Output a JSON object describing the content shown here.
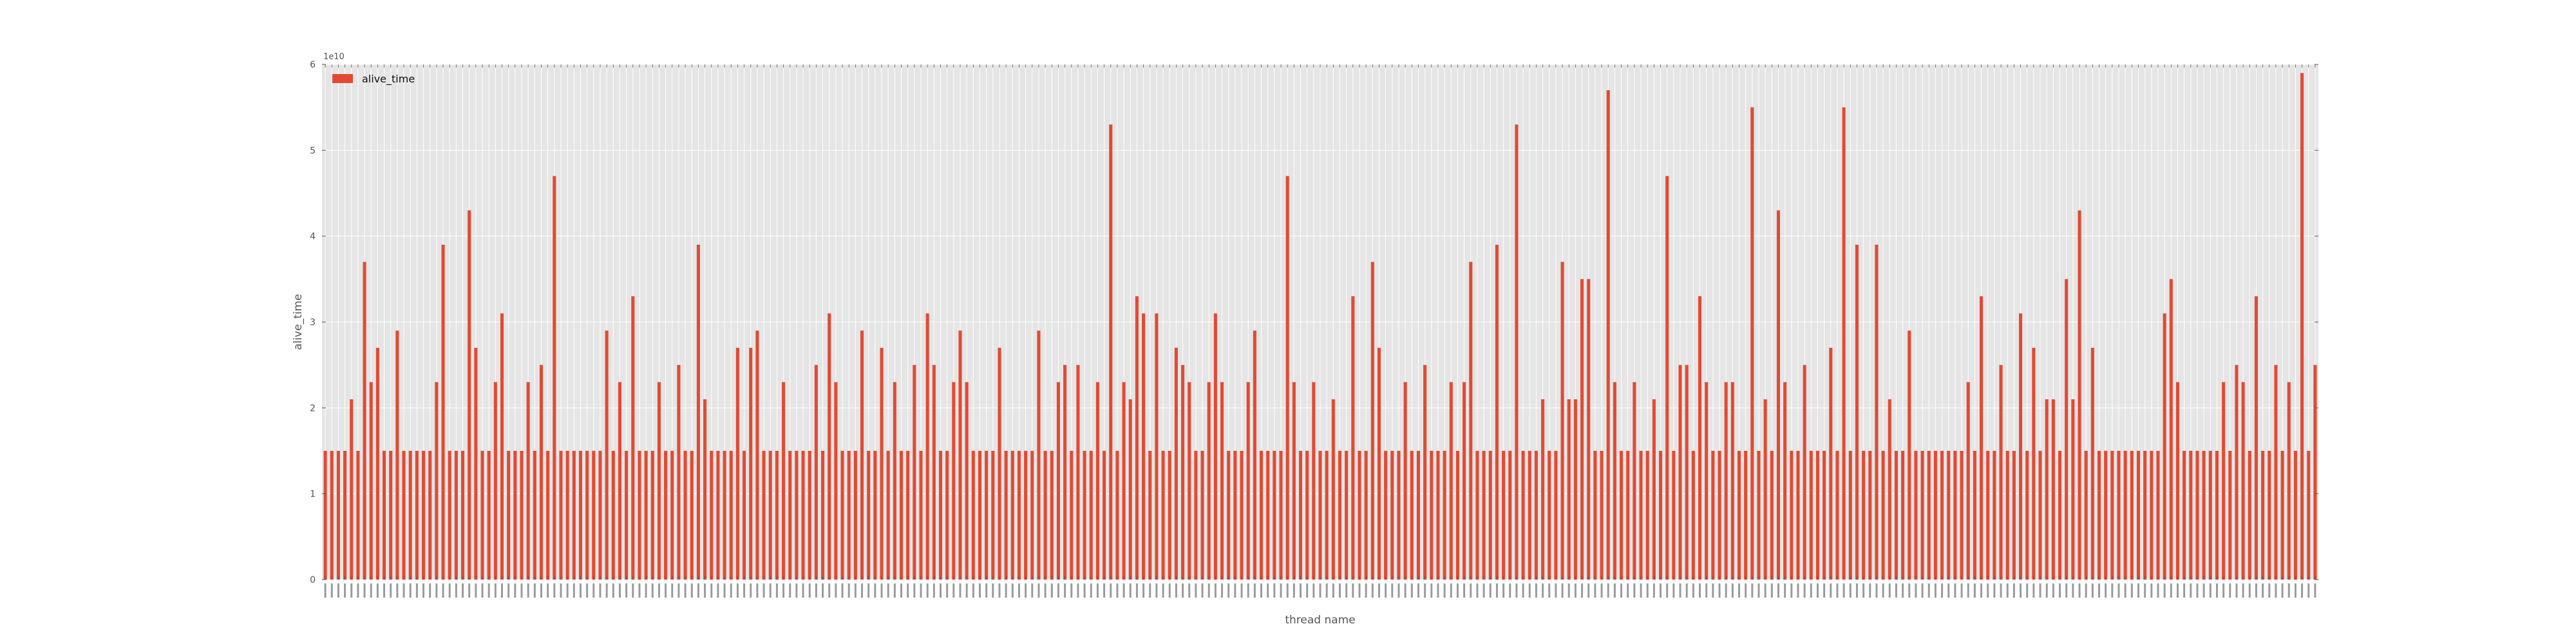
{
  "chart_data": {
    "type": "bar",
    "title": "",
    "xlabel": "thread name",
    "ylabel": "alive_time",
    "ylim": [
      0,
      60000000000
    ],
    "y_ticks": [
      0,
      10000000000,
      20000000000,
      30000000000,
      40000000000,
      50000000000,
      60000000000
    ],
    "y_tick_labels": [
      "0",
      "1",
      "2",
      "3",
      "4",
      "5",
      "6"
    ],
    "y_offset_label": "1e10",
    "grid": true,
    "legend_position": "top-left",
    "x_tick_labels_rotated": true,
    "x_tick_labels_legible": false,
    "bar_color": "#E24A33",
    "background_color": "#E5E5E5",
    "grid_color": "#FFFFFF",
    "series": [
      {
        "name": "alive_time",
        "values": [
          15000000000,
          15000000000,
          15000000000,
          15000000000,
          21000000000,
          15000000000,
          37000000000,
          23000000000,
          27000000000,
          15000000000,
          15000000000,
          29000000000,
          15000000000,
          15000000000,
          15000000000,
          15000000000,
          15000000000,
          23000000000,
          39000000000,
          15000000000,
          15000000000,
          15000000000,
          43000000000,
          27000000000,
          15000000000,
          15000000000,
          23000000000,
          31000000000,
          15000000000,
          15000000000,
          15000000000,
          23000000000,
          15000000000,
          25000000000,
          15000000000,
          47000000000,
          15000000000,
          15000000000,
          15000000000,
          15000000000,
          15000000000,
          15000000000,
          15000000000,
          29000000000,
          15000000000,
          23000000000,
          15000000000,
          33000000000,
          15000000000,
          15000000000,
          15000000000,
          23000000000,
          15000000000,
          15000000000,
          25000000000,
          15000000000,
          15000000000,
          39000000000,
          21000000000,
          15000000000,
          15000000000,
          15000000000,
          15000000000,
          27000000000,
          15000000000,
          27000000000,
          29000000000,
          15000000000,
          15000000000,
          15000000000,
          23000000000,
          15000000000,
          15000000000,
          15000000000,
          15000000000,
          25000000000,
          15000000000,
          31000000000,
          23000000000,
          15000000000,
          15000000000,
          15000000000,
          29000000000,
          15000000000,
          15000000000,
          27000000000,
          15000000000,
          23000000000,
          15000000000,
          15000000000,
          25000000000,
          15000000000,
          31000000000,
          25000000000,
          15000000000,
          15000000000,
          23000000000,
          29000000000,
          23000000000,
          15000000000,
          15000000000,
          15000000000,
          15000000000,
          27000000000,
          15000000000,
          15000000000,
          15000000000,
          15000000000,
          15000000000,
          29000000000,
          15000000000,
          15000000000,
          23000000000,
          25000000000,
          15000000000,
          25000000000,
          15000000000,
          15000000000,
          23000000000,
          15000000000,
          53000000000,
          15000000000,
          23000000000,
          21000000000,
          33000000000,
          31000000000,
          15000000000,
          31000000000,
          15000000000,
          15000000000,
          27000000000,
          25000000000,
          23000000000,
          15000000000,
          15000000000,
          23000000000,
          31000000000,
          23000000000,
          15000000000,
          15000000000,
          15000000000,
          23000000000,
          29000000000,
          15000000000,
          15000000000,
          15000000000,
          15000000000,
          47000000000,
          23000000000,
          15000000000,
          15000000000,
          23000000000,
          15000000000,
          15000000000,
          21000000000,
          15000000000,
          15000000000,
          33000000000,
          15000000000,
          15000000000,
          37000000000,
          27000000000,
          15000000000,
          15000000000,
          15000000000,
          23000000000,
          15000000000,
          15000000000,
          25000000000,
          15000000000,
          15000000000,
          15000000000,
          23000000000,
          15000000000,
          23000000000,
          37000000000,
          15000000000,
          15000000000,
          15000000000,
          39000000000,
          15000000000,
          15000000000,
          53000000000,
          15000000000,
          15000000000,
          15000000000,
          21000000000,
          15000000000,
          15000000000,
          37000000000,
          21000000000,
          21000000000,
          35000000000,
          35000000000,
          15000000000,
          15000000000,
          57000000000,
          23000000000,
          15000000000,
          15000000000,
          23000000000,
          15000000000,
          15000000000,
          21000000000,
          15000000000,
          47000000000,
          15000000000,
          25000000000,
          25000000000,
          15000000000,
          33000000000,
          23000000000,
          15000000000,
          15000000000,
          23000000000,
          23000000000,
          15000000000,
          15000000000,
          55000000000,
          15000000000,
          21000000000,
          15000000000,
          43000000000,
          23000000000,
          15000000000,
          15000000000,
          25000000000,
          15000000000,
          15000000000,
          15000000000,
          27000000000,
          15000000000,
          55000000000,
          15000000000,
          39000000000,
          15000000000,
          15000000000,
          39000000000,
          15000000000,
          21000000000,
          15000000000,
          15000000000,
          29000000000,
          15000000000,
          15000000000,
          15000000000,
          15000000000,
          15000000000,
          15000000000,
          15000000000,
          15000000000,
          23000000000,
          15000000000,
          33000000000,
          15000000000,
          15000000000,
          25000000000,
          15000000000,
          15000000000,
          31000000000,
          15000000000,
          27000000000,
          15000000000,
          21000000000,
          21000000000,
          15000000000,
          35000000000,
          21000000000,
          43000000000,
          15000000000,
          27000000000,
          15000000000,
          15000000000,
          15000000000,
          15000000000,
          15000000000,
          15000000000,
          15000000000,
          15000000000,
          15000000000,
          15000000000,
          31000000000,
          35000000000,
          23000000000,
          15000000000,
          15000000000,
          15000000000,
          15000000000,
          15000000000,
          15000000000,
          23000000000,
          15000000000,
          25000000000,
          23000000000,
          15000000000,
          33000000000,
          15000000000,
          15000000000,
          25000000000,
          15000000000,
          23000000000,
          15000000000,
          59000000000,
          15000000000,
          25000000000
        ]
      }
    ]
  }
}
